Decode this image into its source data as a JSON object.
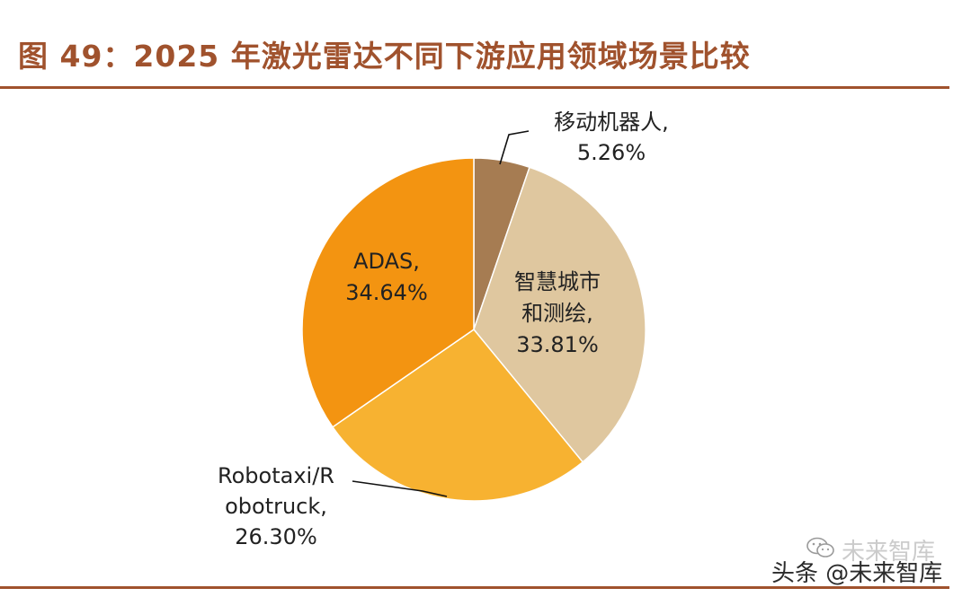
{
  "figure": {
    "title": "图 49：2025 年激光雷达不同下游应用领域场景比较"
  },
  "watermark": {
    "faint": "未来智库",
    "main": "头条 @未来智库",
    "icon": "wechat-icon"
  },
  "chart_data": {
    "type": "pie",
    "title": "图 49：2025 年激光雷达不同下游应用领域场景比较",
    "slices": [
      {
        "label_lines": [
          "移动机器人,",
          "5.26%"
        ],
        "category": "移动机器人",
        "value": 5.26,
        "color": "#a67c52"
      },
      {
        "label_lines": [
          "智慧城市",
          "和测绘,",
          "33.81%"
        ],
        "category": "智慧城市和测绘",
        "value": 33.81,
        "color": "#dfc79f"
      },
      {
        "label_lines": [
          "Robotaxi/R",
          "obotruck,",
          "26.30%"
        ],
        "category": "Robotaxi/Robotruck",
        "value": 26.3,
        "color": "#f7b231"
      },
      {
        "label_lines": [
          "ADAS,",
          "34.64%"
        ],
        "category": "ADAS",
        "value": 34.64,
        "color": "#f39411"
      }
    ],
    "start_angle": "12 o'clock",
    "direction": "clockwise",
    "legend": "none",
    "labels": "outside-with-leader-lines-and-inside"
  }
}
